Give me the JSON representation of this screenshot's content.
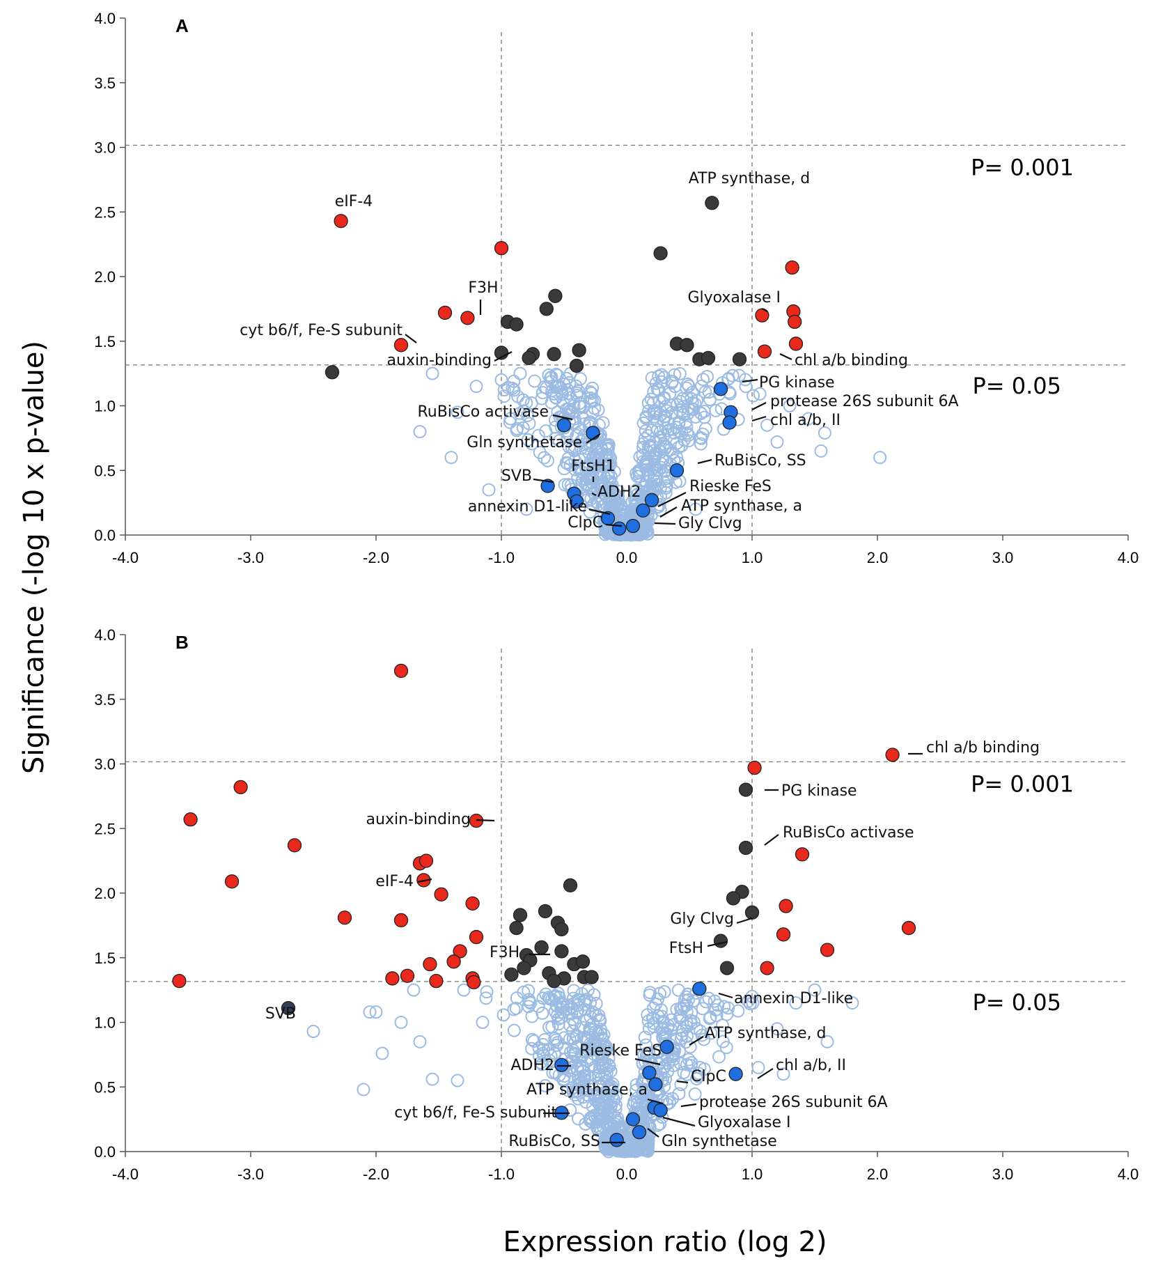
{
  "chart_data": [
    {
      "type": "scatter",
      "panel": "A",
      "xlabel": "Expression ratio (log 2)",
      "ylabel": "Significance (-log 10 x p-value)",
      "xlim": [
        -4.0,
        4.0
      ],
      "ylim": [
        0.0,
        4.0
      ],
      "xticks": [
        "-4.0",
        "-3.0",
        "-2.0",
        "-1.0",
        "0.0",
        "1.0",
        "2.0",
        "3.0",
        "4.0"
      ],
      "yticks": [
        "0.0",
        "0.5",
        "1.0",
        "1.5",
        "2.0",
        "2.5",
        "3.0",
        "3.5",
        "4.0"
      ],
      "thresholds": [
        {
          "y": 1.3,
          "label": "P= 0.05"
        },
        {
          "y": 3.0,
          "label": "P= 0.001"
        }
      ],
      "vlines": [
        -1.0,
        1.0
      ],
      "series": [
        {
          "name": "upregulated-significant",
          "color": "#e8291c",
          "points": [
            {
              "x": -2.28,
              "y": 2.43,
              "label": "eIF-4"
            },
            {
              "x": -1.0,
              "y": 2.22
            },
            {
              "x": -1.45,
              "y": 1.72
            },
            {
              "x": -1.27,
              "y": 1.68,
              "label": "F3H"
            },
            {
              "x": -1.8,
              "y": 1.47,
              "label": "cyt b6/f, Fe-S subunit"
            },
            {
              "x": 1.32,
              "y": 2.07
            },
            {
              "x": 1.08,
              "y": 1.7,
              "label": "Glyoxalase I"
            },
            {
              "x": 1.33,
              "y": 1.73
            },
            {
              "x": 1.34,
              "y": 1.65
            },
            {
              "x": 1.35,
              "y": 1.48
            },
            {
              "x": 1.1,
              "y": 1.42,
              "label": "chl a/b binding"
            }
          ]
        },
        {
          "name": "significant-other",
          "color": "#3a3a3a",
          "points": [
            {
              "x": 0.68,
              "y": 2.57,
              "label": "ATP synthase, d"
            },
            {
              "x": 0.27,
              "y": 2.18
            },
            {
              "x": -0.57,
              "y": 1.85
            },
            {
              "x": -0.64,
              "y": 1.75
            },
            {
              "x": -0.95,
              "y": 1.65
            },
            {
              "x": -0.88,
              "y": 1.63
            },
            {
              "x": -1.0,
              "y": 1.41,
              "label": "auxin-binding"
            },
            {
              "x": -0.58,
              "y": 1.4
            },
            {
              "x": -0.75,
              "y": 1.4
            },
            {
              "x": -0.78,
              "y": 1.37
            },
            {
              "x": -0.38,
              "y": 1.43
            },
            {
              "x": -0.4,
              "y": 1.31
            },
            {
              "x": -2.35,
              "y": 1.26
            },
            {
              "x": 0.4,
              "y": 1.48
            },
            {
              "x": 0.48,
              "y": 1.47
            },
            {
              "x": 0.58,
              "y": 1.36
            },
            {
              "x": 0.65,
              "y": 1.37
            },
            {
              "x": 0.9,
              "y": 1.36
            }
          ]
        },
        {
          "name": "highlighted",
          "color": "#1f6fe0",
          "points": [
            {
              "x": 0.75,
              "y": 1.13,
              "label": "PG kinase"
            },
            {
              "x": 0.83,
              "y": 0.95,
              "label": "protease 26S subunit 6A"
            },
            {
              "x": 0.82,
              "y": 0.87,
              "label": "chl a/b, II"
            },
            {
              "x": -0.5,
              "y": 0.85,
              "label": "RuBisCo activase"
            },
            {
              "x": -0.27,
              "y": 0.79,
              "label": "Gln synthetase"
            },
            {
              "x": 0.4,
              "y": 0.5,
              "label": "RuBisCo, SS"
            },
            {
              "x": -0.63,
              "y": 0.38,
              "label": "SVB"
            },
            {
              "x": -0.42,
              "y": 0.32,
              "label": "FtsH1"
            },
            {
              "x": 0.2,
              "y": 0.27,
              "label": "Rieske FeS"
            },
            {
              "x": 0.13,
              "y": 0.19,
              "label": "ATP synthase, a"
            },
            {
              "x": -0.15,
              "y": 0.13,
              "label": "annexin D1-like"
            },
            {
              "x": -0.06,
              "y": 0.05,
              "label": "ClpC"
            },
            {
              "x": 0.05,
              "y": 0.07,
              "label": "Gly Clvg"
            },
            {
              "x": -0.4,
              "y": 0.26,
              "label": "ADH2"
            }
          ]
        }
      ],
      "cloud": {
        "color": "#9bbbe3",
        "scattered": [
          [
            2.02,
            0.6
          ],
          [
            1.55,
            0.65
          ],
          [
            1.58,
            0.79
          ],
          [
            1.2,
            0.72
          ],
          [
            1.45,
            0.9
          ],
          [
            1.3,
            1.0
          ],
          [
            1.12,
            0.85
          ],
          [
            -1.0,
            1.2
          ],
          [
            -1.2,
            1.15
          ],
          [
            -1.55,
            1.25
          ],
          [
            -1.65,
            0.8
          ],
          [
            -1.35,
            0.95
          ],
          [
            -1.4,
            0.6
          ],
          [
            -1.1,
            0.35
          ],
          [
            -0.8,
            0.2
          ],
          [
            0.55,
            0.2
          ],
          [
            0.95,
            1.15
          ],
          [
            0.3,
            1.22
          ],
          [
            -0.85,
            1.25
          ]
        ]
      }
    },
    {
      "type": "scatter",
      "panel": "B",
      "xlabel": "Expression ratio (log 2)",
      "ylabel": "Significance (-log 10 x p-value)",
      "xlim": [
        -4.0,
        4.0
      ],
      "ylim": [
        0.0,
        4.0
      ],
      "xticks": [
        "-4.0",
        "-3.0",
        "-2.0",
        "-1.0",
        "0.0",
        "1.0",
        "2.0",
        "3.0",
        "4.0"
      ],
      "yticks": [
        "0.0",
        "0.5",
        "1.0",
        "1.5",
        "2.0",
        "2.5",
        "3.0",
        "3.5",
        "4.0"
      ],
      "thresholds": [
        {
          "y": 1.3,
          "label": "P= 0.05"
        },
        {
          "y": 3.0,
          "label": "P= 0.001"
        }
      ],
      "vlines": [
        -1.0,
        1.0
      ],
      "series": [
        {
          "name": "upregulated-significant",
          "color": "#e8291c",
          "points": [
            {
              "x": -1.8,
              "y": 3.72
            },
            {
              "x": 2.12,
              "y": 3.07,
              "label": "chl a/b binding"
            },
            {
              "x": 1.02,
              "y": 2.97
            },
            {
              "x": -3.08,
              "y": 2.82
            },
            {
              "x": -3.48,
              "y": 2.57
            },
            {
              "x": -1.2,
              "y": 2.56,
              "label": "auxin-binding"
            },
            {
              "x": -2.65,
              "y": 2.37
            },
            {
              "x": 1.4,
              "y": 2.3
            },
            {
              "x": -1.65,
              "y": 2.23
            },
            {
              "x": -1.6,
              "y": 2.25
            },
            {
              "x": -1.62,
              "y": 2.1,
              "label": "eIF-4"
            },
            {
              "x": -3.15,
              "y": 2.09
            },
            {
              "x": -1.48,
              "y": 1.99
            },
            {
              "x": -1.23,
              "y": 1.92
            },
            {
              "x": 1.27,
              "y": 1.9
            },
            {
              "x": -2.25,
              "y": 1.81
            },
            {
              "x": -1.8,
              "y": 1.79
            },
            {
              "x": 2.25,
              "y": 1.73
            },
            {
              "x": 1.25,
              "y": 1.68
            },
            {
              "x": -1.2,
              "y": 1.66
            },
            {
              "x": -1.33,
              "y": 1.55
            },
            {
              "x": 1.6,
              "y": 1.56
            },
            {
              "x": -1.38,
              "y": 1.47
            },
            {
              "x": -1.57,
              "y": 1.45
            },
            {
              "x": 1.12,
              "y": 1.42
            },
            {
              "x": -1.87,
              "y": 1.34
            },
            {
              "x": -1.75,
              "y": 1.36
            },
            {
              "x": -1.52,
              "y": 1.32
            },
            {
              "x": -1.23,
              "y": 1.34
            },
            {
              "x": -1.22,
              "y": 1.31
            },
            {
              "x": -3.57,
              "y": 1.32
            }
          ]
        },
        {
          "name": "significant-other",
          "color": "#3a3a3a",
          "points": [
            {
              "x": 0.95,
              "y": 2.8,
              "label": "PG kinase"
            },
            {
              "x": 0.95,
              "y": 2.35,
              "label": "RuBisCo activase"
            },
            {
              "x": -0.45,
              "y": 2.06
            },
            {
              "x": 0.92,
              "y": 2.01
            },
            {
              "x": 0.85,
              "y": 1.96
            },
            {
              "x": -0.85,
              "y": 1.83
            },
            {
              "x": -0.65,
              "y": 1.86
            },
            {
              "x": -0.55,
              "y": 1.77
            },
            {
              "x": -0.52,
              "y": 1.72
            },
            {
              "x": -0.88,
              "y": 1.73
            },
            {
              "x": 1.0,
              "y": 1.85,
              "label": "Gly Clvg"
            },
            {
              "x": 0.75,
              "y": 1.63,
              "label": "FtsH"
            },
            {
              "x": -0.68,
              "y": 1.58
            },
            {
              "x": -0.52,
              "y": 1.55
            },
            {
              "x": -0.8,
              "y": 1.52,
              "label": "F3H"
            },
            {
              "x": -0.77,
              "y": 1.48
            },
            {
              "x": -0.42,
              "y": 1.45
            },
            {
              "x": -0.35,
              "y": 1.47
            },
            {
              "x": -0.82,
              "y": 1.42
            },
            {
              "x": -0.92,
              "y": 1.37
            },
            {
              "x": -0.62,
              "y": 1.38
            },
            {
              "x": -0.34,
              "y": 1.35
            },
            {
              "x": -0.28,
              "y": 1.35
            },
            {
              "x": -0.5,
              "y": 1.34
            },
            {
              "x": -0.58,
              "y": 1.32
            },
            {
              "x": 0.8,
              "y": 1.42
            }
          ]
        },
        {
          "name": "highlighted",
          "color": "#1f6fe0",
          "points": [
            {
              "x": 0.58,
              "y": 1.26,
              "label": "annexin D1-like"
            },
            {
              "x": -2.7,
              "y": 1.11,
              "label": "SVB",
              "color": "#2f3f55"
            },
            {
              "x": 0.32,
              "y": 0.81,
              "label": "ATP synthase, d"
            },
            {
              "x": -0.52,
              "y": 0.67,
              "label": "ADH2"
            },
            {
              "x": 0.18,
              "y": 0.61,
              "label": "Rieske FeS"
            },
            {
              "x": 0.87,
              "y": 0.6,
              "label": "chl a/b, II"
            },
            {
              "x": 0.23,
              "y": 0.52,
              "label": "ClpC"
            },
            {
              "x": 0.22,
              "y": 0.34,
              "label": "ATP synthase, a"
            },
            {
              "x": 0.27,
              "y": 0.32,
              "label": "protease 26S subunit 6A"
            },
            {
              "x": -0.52,
              "y": 0.3,
              "label": "cyt b6/f, Fe-S subunit"
            },
            {
              "x": 0.05,
              "y": 0.25,
              "label": "Glyoxalase I"
            },
            {
              "x": -0.08,
              "y": 0.09,
              "label": "RuBisCo, SS"
            },
            {
              "x": 0.1,
              "y": 0.15,
              "label": "Gln synthetase"
            }
          ]
        }
      ],
      "cloud": {
        "color": "#9bbbe3",
        "scattered": [
          [
            -2.0,
            1.08
          ],
          [
            -2.05,
            1.08
          ],
          [
            -2.5,
            0.93
          ],
          [
            -2.1,
            0.48
          ],
          [
            -1.95,
            0.76
          ],
          [
            -1.8,
            1.0
          ],
          [
            -1.65,
            0.85
          ],
          [
            -1.55,
            0.56
          ],
          [
            -1.35,
            0.55
          ],
          [
            -1.3,
            1.25
          ],
          [
            -1.7,
            1.25
          ],
          [
            1.5,
            1.25
          ],
          [
            1.8,
            1.15
          ],
          [
            1.35,
            1.15
          ],
          [
            1.6,
            0.85
          ],
          [
            1.25,
            0.6
          ],
          [
            1.05,
            0.65
          ],
          [
            1.2,
            0.95
          ],
          [
            -1.15,
            1.0
          ],
          [
            -0.9,
            1.1
          ],
          [
            0.4,
            1.1
          ],
          [
            0.25,
            1.05
          ],
          [
            0.6,
            0.9
          ],
          [
            1.0,
            1.2
          ]
        ]
      }
    }
  ],
  "annotations": {
    "panel_a": {
      "letter": "A",
      "p001": "P= 0.001",
      "p005": "P= 0.05",
      "labels": [
        {
          "text": "eIF-4"
        },
        {
          "text": "F3H"
        },
        {
          "text": "cyt b6/f, Fe-S subunit"
        },
        {
          "text": "auxin-binding"
        },
        {
          "text": "ATP synthase, d"
        },
        {
          "text": "Glyoxalase I"
        },
        {
          "text": "chl a/b binding"
        },
        {
          "text": "PG kinase"
        },
        {
          "text": "protease 26S subunit 6A"
        },
        {
          "text": "chl a/b, II"
        },
        {
          "text": "RuBisCo activase"
        },
        {
          "text": "Gln synthetase"
        },
        {
          "text": "RuBisCo, SS"
        },
        {
          "text": "SVB"
        },
        {
          "text": "FtsH1"
        },
        {
          "text": "ADH2"
        },
        {
          "text": "Rieske FeS"
        },
        {
          "text": "annexin D1-like"
        },
        {
          "text": "ATP synthase, a"
        },
        {
          "text": "ClpC"
        },
        {
          "text": "Gly Clvg"
        }
      ]
    },
    "panel_b": {
      "letter": "B",
      "p001": "P= 0.001",
      "p005": "P= 0.05",
      "labels": [
        {
          "text": "chl a/b binding"
        },
        {
          "text": "PG kinase"
        },
        {
          "text": "auxin-binding"
        },
        {
          "text": "RuBisCo activase"
        },
        {
          "text": "eIF-4"
        },
        {
          "text": "Gly Clvg"
        },
        {
          "text": "FtsH"
        },
        {
          "text": "F3H"
        },
        {
          "text": "annexin D1-like"
        },
        {
          "text": "SVB"
        },
        {
          "text": "ATP synthase, d"
        },
        {
          "text": "Rieske FeS"
        },
        {
          "text": "ADH2"
        },
        {
          "text": "chl a/b, II"
        },
        {
          "text": "ClpC"
        },
        {
          "text": "ATP synthase, a"
        },
        {
          "text": "protease 26S subunit 6A"
        },
        {
          "text": "cyt b6/f, Fe-S subunit"
        },
        {
          "text": "Glyoxalase I"
        },
        {
          "text": "RuBisCo, SS"
        },
        {
          "text": "Gln synthetase"
        }
      ]
    }
  },
  "axis_titles": {
    "y": "Significance (-log 10 x p-value)",
    "x": "Expression ratio (log 2)"
  }
}
